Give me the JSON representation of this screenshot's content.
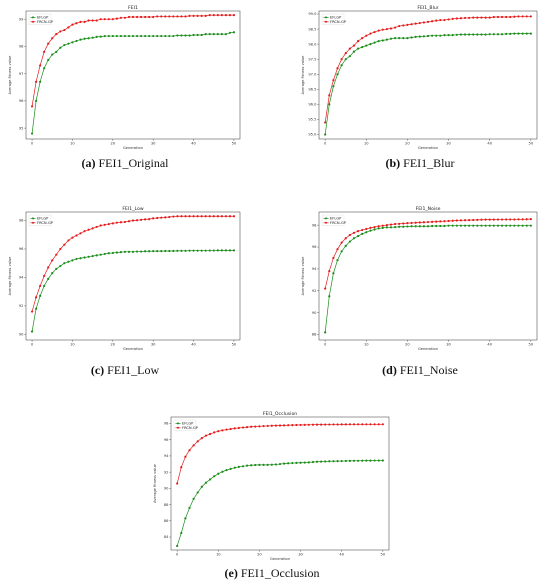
{
  "colors": {
    "efl": "#1a8c1a",
    "frcn": "#e31b1b"
  },
  "chart_data": [
    {
      "id": "a",
      "type": "line",
      "title": "FEI1",
      "xlabel": "Generation",
      "ylabel": "Average fitness value",
      "caption_letter": "(a)",
      "caption_text": "FEI1_Original",
      "xlim": [
        -1.5,
        51.5
      ],
      "ylim": [
        94.6,
        99.3
      ],
      "xticks": [
        0,
        10,
        20,
        30,
        40,
        50
      ],
      "yticks": [
        95,
        96,
        97,
        98,
        99
      ],
      "legend_pos": "top-left",
      "series": [
        {
          "name": "EFLGP",
          "values": [
            94.8,
            96.0,
            96.7,
            97.2,
            97.5,
            97.7,
            97.8,
            97.95,
            98.05,
            98.1,
            98.15,
            98.2,
            98.25,
            98.28,
            98.3,
            98.32,
            98.35,
            98.36,
            98.38,
            98.38,
            98.38,
            98.38,
            98.38,
            98.38,
            98.38,
            98.38,
            98.38,
            98.38,
            98.38,
            98.38,
            98.38,
            98.38,
            98.38,
            98.38,
            98.38,
            98.38,
            98.4,
            98.4,
            98.4,
            98.4,
            98.42,
            98.42,
            98.42,
            98.45,
            98.45,
            98.45,
            98.45,
            98.45,
            98.45,
            98.5,
            98.52
          ]
        },
        {
          "name": "FRCN-GP",
          "values": [
            95.8,
            96.7,
            97.3,
            97.8,
            98.1,
            98.3,
            98.45,
            98.55,
            98.6,
            98.7,
            98.8,
            98.85,
            98.9,
            98.9,
            98.95,
            98.95,
            98.95,
            99.0,
            99.0,
            99.0,
            99.0,
            99.02,
            99.05,
            99.05,
            99.08,
            99.08,
            99.08,
            99.08,
            99.08,
            99.08,
            99.08,
            99.1,
            99.1,
            99.1,
            99.1,
            99.1,
            99.1,
            99.1,
            99.1,
            99.12,
            99.12,
            99.12,
            99.12,
            99.12,
            99.15,
            99.15,
            99.15,
            99.15,
            99.15,
            99.15,
            99.15
          ]
        }
      ]
    },
    {
      "id": "b",
      "type": "line",
      "title": "FEI1_Blur",
      "xlabel": "Generation",
      "ylabel": "Average fitness value",
      "caption_letter": "(b)",
      "caption_text": "FEI1_Blur",
      "xlim": [
        -1.5,
        51.5
      ],
      "ylim": [
        94.85,
        99.1
      ],
      "xticks": [
        0,
        10,
        20,
        30,
        40,
        50
      ],
      "yticks": [
        95.0,
        95.5,
        96.0,
        96.5,
        97.0,
        97.5,
        98.0,
        98.5,
        99.0
      ],
      "legend_pos": "top-left",
      "series": [
        {
          "name": "EFLGP",
          "values": [
            95.0,
            96.0,
            96.6,
            97.0,
            97.3,
            97.5,
            97.6,
            97.75,
            97.85,
            97.9,
            97.95,
            98.0,
            98.05,
            98.1,
            98.12,
            98.15,
            98.18,
            98.2,
            98.2,
            98.2,
            98.2,
            98.22,
            98.24,
            98.25,
            98.26,
            98.27,
            98.28,
            98.28,
            98.28,
            98.3,
            98.3,
            98.3,
            98.31,
            98.32,
            98.32,
            98.32,
            98.32,
            98.32,
            98.32,
            98.32,
            98.33,
            98.33,
            98.33,
            98.33,
            98.34,
            98.34,
            98.35,
            98.35,
            98.35,
            98.35,
            98.35
          ]
        },
        {
          "name": "FRCN-GP",
          "values": [
            95.4,
            96.3,
            96.8,
            97.2,
            97.5,
            97.7,
            97.85,
            97.95,
            98.1,
            98.2,
            98.28,
            98.35,
            98.4,
            98.45,
            98.48,
            98.5,
            98.52,
            98.55,
            98.6,
            98.62,
            98.64,
            98.66,
            98.68,
            98.7,
            98.72,
            98.74,
            98.76,
            98.78,
            98.8,
            98.8,
            98.82,
            98.84,
            98.85,
            98.86,
            98.87,
            98.87,
            98.88,
            98.88,
            98.88,
            98.88,
            98.88,
            98.9,
            98.9,
            98.9,
            98.9,
            98.9,
            98.91,
            98.92,
            98.92,
            98.92,
            98.92
          ]
        }
      ]
    },
    {
      "id": "c",
      "type": "line",
      "title": "FEI1_Low",
      "xlabel": "Generation",
      "ylabel": "Average fitness value",
      "caption_letter": "(c)",
      "caption_text": "FEI1_Low",
      "xlim": [
        -1.5,
        51.5
      ],
      "ylim": [
        89.6,
        98.6
      ],
      "xticks": [
        0,
        10,
        20,
        30,
        40,
        50
      ],
      "yticks": [
        90,
        92,
        94,
        96,
        98
      ],
      "legend_pos": "top-left",
      "series": [
        {
          "name": "EFLGP",
          "values": [
            90.2,
            91.8,
            92.7,
            93.4,
            93.9,
            94.3,
            94.6,
            94.8,
            95.0,
            95.1,
            95.2,
            95.3,
            95.35,
            95.4,
            95.45,
            95.5,
            95.55,
            95.6,
            95.65,
            95.7,
            95.72,
            95.75,
            95.78,
            95.8,
            95.8,
            95.8,
            95.82,
            95.82,
            95.84,
            95.84,
            95.85,
            95.85,
            95.85,
            95.86,
            95.86,
            95.86,
            95.87,
            95.87,
            95.87,
            95.88,
            95.88,
            95.88,
            95.88,
            95.88,
            95.89,
            95.89,
            95.9,
            95.9,
            95.9,
            95.9,
            95.9
          ]
        },
        {
          "name": "FRCN-GP",
          "values": [
            91.6,
            92.6,
            93.4,
            94.1,
            94.7,
            95.2,
            95.6,
            96.0,
            96.3,
            96.6,
            96.8,
            96.95,
            97.1,
            97.25,
            97.35,
            97.45,
            97.55,
            97.65,
            97.7,
            97.75,
            97.8,
            97.85,
            97.88,
            97.9,
            97.95,
            98.0,
            98.02,
            98.05,
            98.08,
            98.1,
            98.15,
            98.18,
            98.2,
            98.22,
            98.25,
            98.28,
            98.3,
            98.3,
            98.3,
            98.3,
            98.3,
            98.3,
            98.3,
            98.3,
            98.3,
            98.3,
            98.3,
            98.3,
            98.3,
            98.3,
            98.3
          ]
        }
      ]
    },
    {
      "id": "d",
      "type": "line",
      "title": "FEI1_Noise",
      "xlabel": "Generation",
      "ylabel": "Average fitness value",
      "caption_letter": "(d)",
      "caption_text": "FEI1_Noise",
      "xlim": [
        -1.5,
        51.5
      ],
      "ylim": [
        87.5,
        99.2
      ],
      "xticks": [
        0,
        10,
        20,
        30,
        40,
        50
      ],
      "yticks": [
        88,
        90,
        92,
        94,
        96,
        98
      ],
      "legend_pos": "top-left",
      "series": [
        {
          "name": "EFLGP",
          "values": [
            88.2,
            91.5,
            93.6,
            94.8,
            95.6,
            96.1,
            96.5,
            96.8,
            97.0,
            97.2,
            97.35,
            97.5,
            97.6,
            97.7,
            97.75,
            97.8,
            97.8,
            97.82,
            97.85,
            97.85,
            97.88,
            97.9,
            97.9,
            97.9,
            97.9,
            97.9,
            97.92,
            97.92,
            97.92,
            97.92,
            97.95,
            97.95,
            97.95,
            97.95,
            97.95,
            97.95,
            97.95,
            97.95,
            97.95,
            97.95,
            97.95,
            97.95,
            97.95,
            97.95,
            97.95,
            97.95,
            97.95,
            97.95,
            97.95,
            97.95,
            97.95
          ]
        },
        {
          "name": "FRCN-GP",
          "values": [
            92.2,
            93.8,
            95.0,
            95.8,
            96.4,
            96.8,
            97.1,
            97.3,
            97.45,
            97.55,
            97.65,
            97.75,
            97.82,
            97.9,
            97.95,
            98.0,
            98.05,
            98.1,
            98.12,
            98.15,
            98.18,
            98.2,
            98.22,
            98.24,
            98.26,
            98.28,
            98.3,
            98.32,
            98.34,
            98.36,
            98.38,
            98.4,
            98.42,
            98.44,
            98.45,
            98.46,
            98.47,
            98.48,
            98.49,
            98.5,
            98.5,
            98.5,
            98.51,
            98.51,
            98.52,
            98.52,
            98.52,
            98.53,
            98.53,
            98.54,
            98.55
          ]
        }
      ]
    },
    {
      "id": "e",
      "type": "line",
      "title": "FEI1_Occlusion",
      "xlabel": "Generation",
      "ylabel": "Average fitness value",
      "caption_letter": "(e)",
      "caption_text": "FEI1_Occlusion",
      "xlim": [
        -1.5,
        51.5
      ],
      "ylim": [
        82.4,
        98.8
      ],
      "xticks": [
        0,
        10,
        20,
        30,
        40,
        50
      ],
      "yticks": [
        84,
        86,
        88,
        90,
        92,
        94,
        96,
        98
      ],
      "legend_pos": "top-left",
      "series": [
        {
          "name": "EFLGP",
          "values": [
            82.9,
            84.5,
            86.3,
            87.6,
            88.7,
            89.5,
            90.2,
            90.7,
            91.1,
            91.5,
            91.8,
            92.05,
            92.25,
            92.4,
            92.55,
            92.65,
            92.72,
            92.8,
            92.85,
            92.88,
            92.9,
            92.9,
            92.9,
            92.92,
            92.95,
            93.0,
            93.05,
            93.1,
            93.12,
            93.14,
            93.16,
            93.18,
            93.2,
            93.25,
            93.28,
            93.3,
            93.32,
            93.34,
            93.35,
            93.36,
            93.37,
            93.38,
            93.39,
            93.4,
            93.4,
            93.41,
            93.42,
            93.42,
            93.43,
            93.43,
            93.44
          ]
        },
        {
          "name": "FRCN-GP",
          "values": [
            90.6,
            92.6,
            93.9,
            94.7,
            95.3,
            95.8,
            96.2,
            96.5,
            96.7,
            96.9,
            97.05,
            97.15,
            97.25,
            97.32,
            97.4,
            97.45,
            97.5,
            97.55,
            97.6,
            97.62,
            97.65,
            97.68,
            97.7,
            97.72,
            97.74,
            97.75,
            97.77,
            97.79,
            97.8,
            97.81,
            97.82,
            97.83,
            97.84,
            97.85,
            97.86,
            97.86,
            97.87,
            97.87,
            97.88,
            97.88,
            97.89,
            97.89,
            97.9,
            97.9,
            97.9,
            97.9,
            97.9,
            97.9,
            97.9,
            97.9,
            97.9
          ]
        }
      ]
    }
  ]
}
